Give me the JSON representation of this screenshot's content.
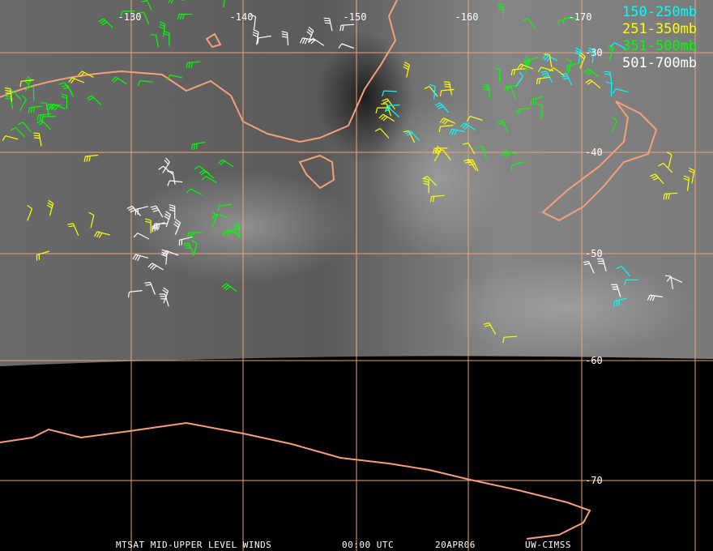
{
  "map": {
    "longitude_labels": [
      "-130",
      "-140",
      "-150",
      "-160",
      "-170"
    ],
    "latitude_labels": [
      "-30",
      "-40",
      "-50",
      "-60",
      "-70"
    ]
  },
  "legend": [
    "150-250mb",
    "251-350mb",
    "351-500mb",
    "501-700mb"
  ],
  "footer": [
    "MTSAT MID-UPPER LEVEL WINDS",
    "00:00 UTC",
    "20APR06",
    "UW-CIMSS"
  ]
}
